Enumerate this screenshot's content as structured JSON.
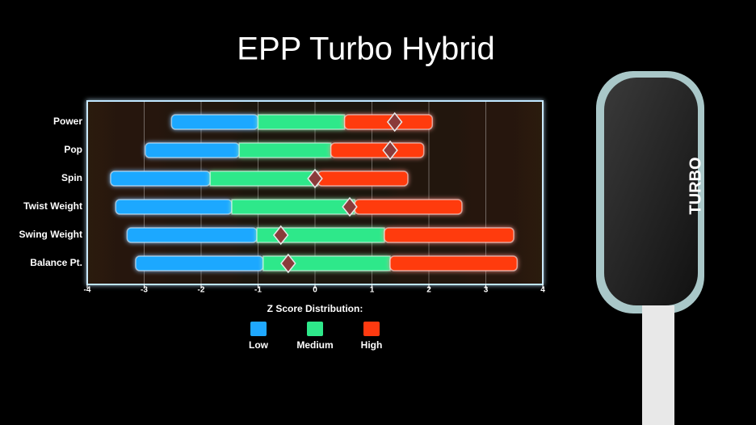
{
  "chart_data": {
    "type": "range_bar",
    "title": "EPP Turbo Hybrid",
    "categories": [
      "Power",
      "Pop",
      "Spin",
      "Twist Weight",
      "Swing Weight",
      "Balance Pt."
    ],
    "series": [
      {
        "name": "Low",
        "color": "#1fa8ff",
        "values": [
          [
            -2.52,
            -1.0
          ],
          [
            -2.98,
            -1.33
          ],
          [
            -3.59,
            -1.84
          ],
          [
            -3.5,
            -1.46
          ],
          [
            -3.3,
            -1.02
          ],
          [
            -3.15,
            -0.91
          ]
        ]
      },
      {
        "name": "Medium",
        "color": "#2ee88a",
        "values": [
          [
            -1.0,
            0.52
          ],
          [
            -1.33,
            0.28
          ],
          [
            -1.84,
            0.05
          ],
          [
            -1.46,
            0.7
          ],
          [
            -1.02,
            1.22
          ],
          [
            -0.91,
            1.32
          ]
        ]
      },
      {
        "name": "High",
        "color": "#ff3a10",
        "values": [
          [
            0.52,
            2.06
          ],
          [
            0.28,
            1.91
          ],
          [
            0.05,
            1.63
          ],
          [
            0.7,
            2.58
          ],
          [
            1.22,
            3.49
          ],
          [
            1.32,
            3.55
          ]
        ]
      }
    ],
    "markers": {
      "color": "#8a3b3b",
      "values": [
        1.4,
        1.32,
        0.0,
        0.61,
        -0.6,
        -0.47
      ]
    },
    "legend_title": "Z Score Distribution:",
    "xlim": [
      -4,
      4
    ],
    "xticks": [
      -4,
      -3,
      -2,
      -1,
      0,
      1,
      2,
      3,
      4
    ],
    "grid": true
  },
  "paddle": {
    "label": "TURBO"
  }
}
